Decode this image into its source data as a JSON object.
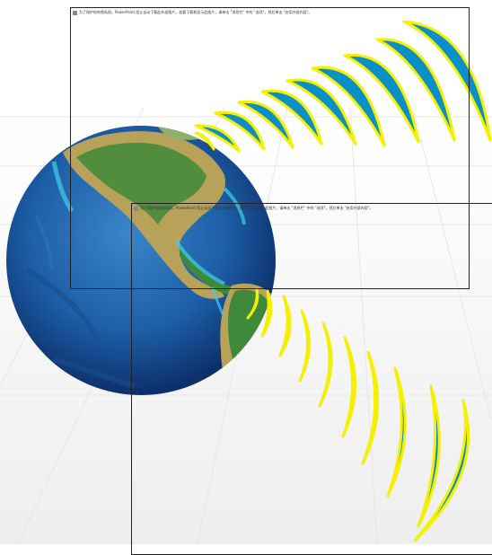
{
  "frames": [
    {
      "caption": "为了保护你的隐私权，PowerPoint 阻止自动下载此外部图片。若要下载和显示此图片，请单击 \"消息栏\" 中的 \"选项\"，然后单击 \"启用外部内容\"。"
    },
    {
      "caption": "为了保护你的隐私权，PowerPoint 阻止自动下载此外部图片。若要下载和显示此图片，请单击 \"消息栏\" 中的 \"选项\"，然后单击 \"启用外部内容\"。"
    }
  ],
  "colors": {
    "wave_fill": "#0a8fc6",
    "wave_outline": "#f5f000",
    "ocean": "#1d5fa8",
    "land_green": "#3f8a3a",
    "land_tan": "#b8a25a",
    "shallow": "#3fd0e8"
  }
}
